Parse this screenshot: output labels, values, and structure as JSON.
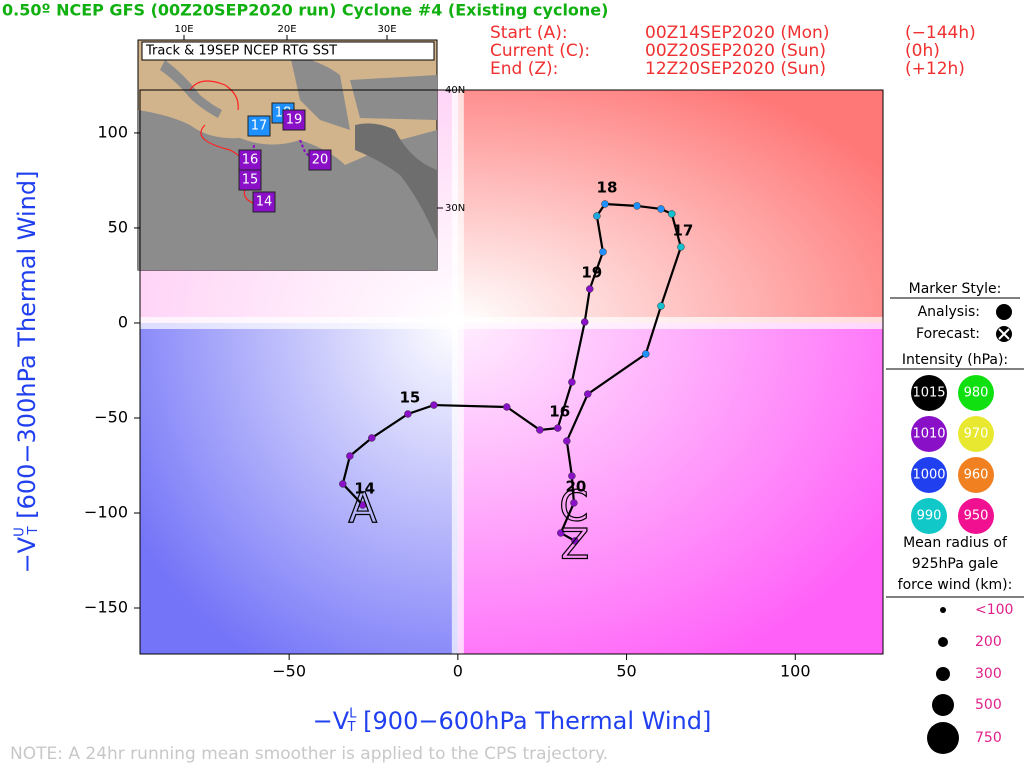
{
  "chart_data": {
    "type": "line",
    "title": "0.50º NCEP GFS (00Z20SEP2020 run) Cyclone #4 (Existing cyclone)",
    "info": [
      [
        "Start (A):",
        "00Z14SEP2020 (Mon)",
        "(−144h)"
      ],
      [
        "Current (C):",
        "00Z20SEP2020 (Sun)",
        "(0h)"
      ],
      [
        "End (Z):",
        "12Z20SEP2020 (Sun)",
        "(+12h)"
      ]
    ],
    "x_label": {
      "main": "−V",
      "sub": "T",
      "sup": "L",
      "rest": " [900−600hPa Thermal Wind]"
    },
    "y_label": {
      "main": "−V",
      "sub": "T",
      "sup": "U",
      "rest": " [600−300hPa Thermal Wind]"
    },
    "note": "NOTE:  A 24hr running mean smoother is applied to the CPS trajectory.",
    "xlim": [
      -94.2,
      126
    ],
    "ylim": [
      -174.2,
      122.6
    ],
    "xticks": [
      {
        "value": -50,
        "label": "−50"
      },
      0,
      50,
      100
    ],
    "yticks": [
      100,
      50,
      0,
      {
        "value": -50,
        "label": "−50"
      },
      {
        "value": -100,
        "label": "−100"
      },
      {
        "value": -150,
        "label": "−150"
      }
    ],
    "track_markers": {
      "start": "A",
      "current": "C",
      "end": "Z"
    },
    "series": [
      {
        "color": "#000000",
        "x": [
          -28.2,
          -34.1,
          -32.0,
          -25.5,
          -14.8,
          -7.1,
          14.5,
          24.3,
          29.6,
          33.8,
          37.6,
          39.1,
          43.0,
          41.2,
          43.6,
          53.1,
          60.2,
          63.4,
          66.1,
          60.2,
          55.7,
          38.5,
          32.3,
          33.8,
          34.4,
          30.5,
          34.7
        ],
        "values": [
          -95.8,
          -84.7,
          -70.0,
          -60.5,
          -47.9,
          -43.2,
          -44.2,
          -56.3,
          -55.3,
          -31.1,
          0.5,
          17.9,
          37.4,
          56.3,
          62.6,
          61.6,
          60.0,
          57.4,
          40.0,
          8.9,
          -16.3,
          -37.4,
          -62.1,
          -80.5,
          -94.7,
          -110.5,
          -114.7
        ],
        "point_colors": [
          "#8a10c8",
          "#8a10c8",
          "#8a10c8",
          "#8a10c8",
          "#8a10c8",
          "#8a10c8",
          "#8a10c8",
          "#8a10c8",
          "#8a10c8",
          "#8a10c8",
          "#8a10c8",
          "#8a10c8",
          "#1e90ff",
          "#1ea8e0",
          "#1e90ff",
          "#1e90ff",
          "#1e90ff",
          "#10c0d0",
          "#10c0d0",
          "#10c0d0",
          "#1e90ff",
          "#8a10c8",
          "#8a10c8",
          "#8a10c8",
          "#8a10c8",
          "#8a10c8",
          "#8a10c8"
        ],
        "labels": [
          "14",
          null,
          null,
          null,
          "15",
          null,
          null,
          null,
          "16",
          null,
          null,
          "19",
          null,
          null,
          "18",
          null,
          null,
          null,
          "17",
          null,
          null,
          null,
          null,
          null,
          "20",
          null,
          null
        ]
      }
    ],
    "legend": {
      "marker_title": "Marker Style:",
      "analysis": "Analysis:",
      "forecast": "Forecast:",
      "intensity_title": "Intensity (hPa):",
      "intensity": [
        {
          "label": "1015",
          "color": "#000000"
        },
        {
          "label": "980",
          "color": "#10e010"
        },
        {
          "label": "1010",
          "color": "#8a10c8"
        },
        {
          "label": "970",
          "color": "#e8e830"
        },
        {
          "label": "1000",
          "color": "#2040f0"
        },
        {
          "label": "960",
          "color": "#f08020"
        },
        {
          "label": "990",
          "color": "#10c8c8"
        },
        {
          "label": "950",
          "color": "#f01090"
        }
      ],
      "radius_title": [
        "Mean radius of",
        "925hPa gale",
        "force wind (km):"
      ],
      "radius": [
        "<100",
        "200",
        "300",
        "500",
        "750"
      ]
    },
    "inset": {
      "title": "Track & 19SEP NCEP RTG SST",
      "lon_labels": [
        "10E",
        "20E",
        "30E"
      ],
      "lat_labels": [
        "40N",
        "30N"
      ],
      "markers": [
        {
          "label": "14",
          "color": "#8a10c8"
        },
        {
          "label": "15",
          "color": "#8a10c8"
        },
        {
          "label": "16",
          "color": "#8a10c8"
        },
        {
          "label": "17",
          "color": "#1e90ff"
        },
        {
          "label": "18",
          "color": "#1e90ff"
        },
        {
          "label": "19",
          "color": "#8a10c8"
        },
        {
          "label": "20",
          "color": "#8a10c8"
        }
      ]
    }
  }
}
